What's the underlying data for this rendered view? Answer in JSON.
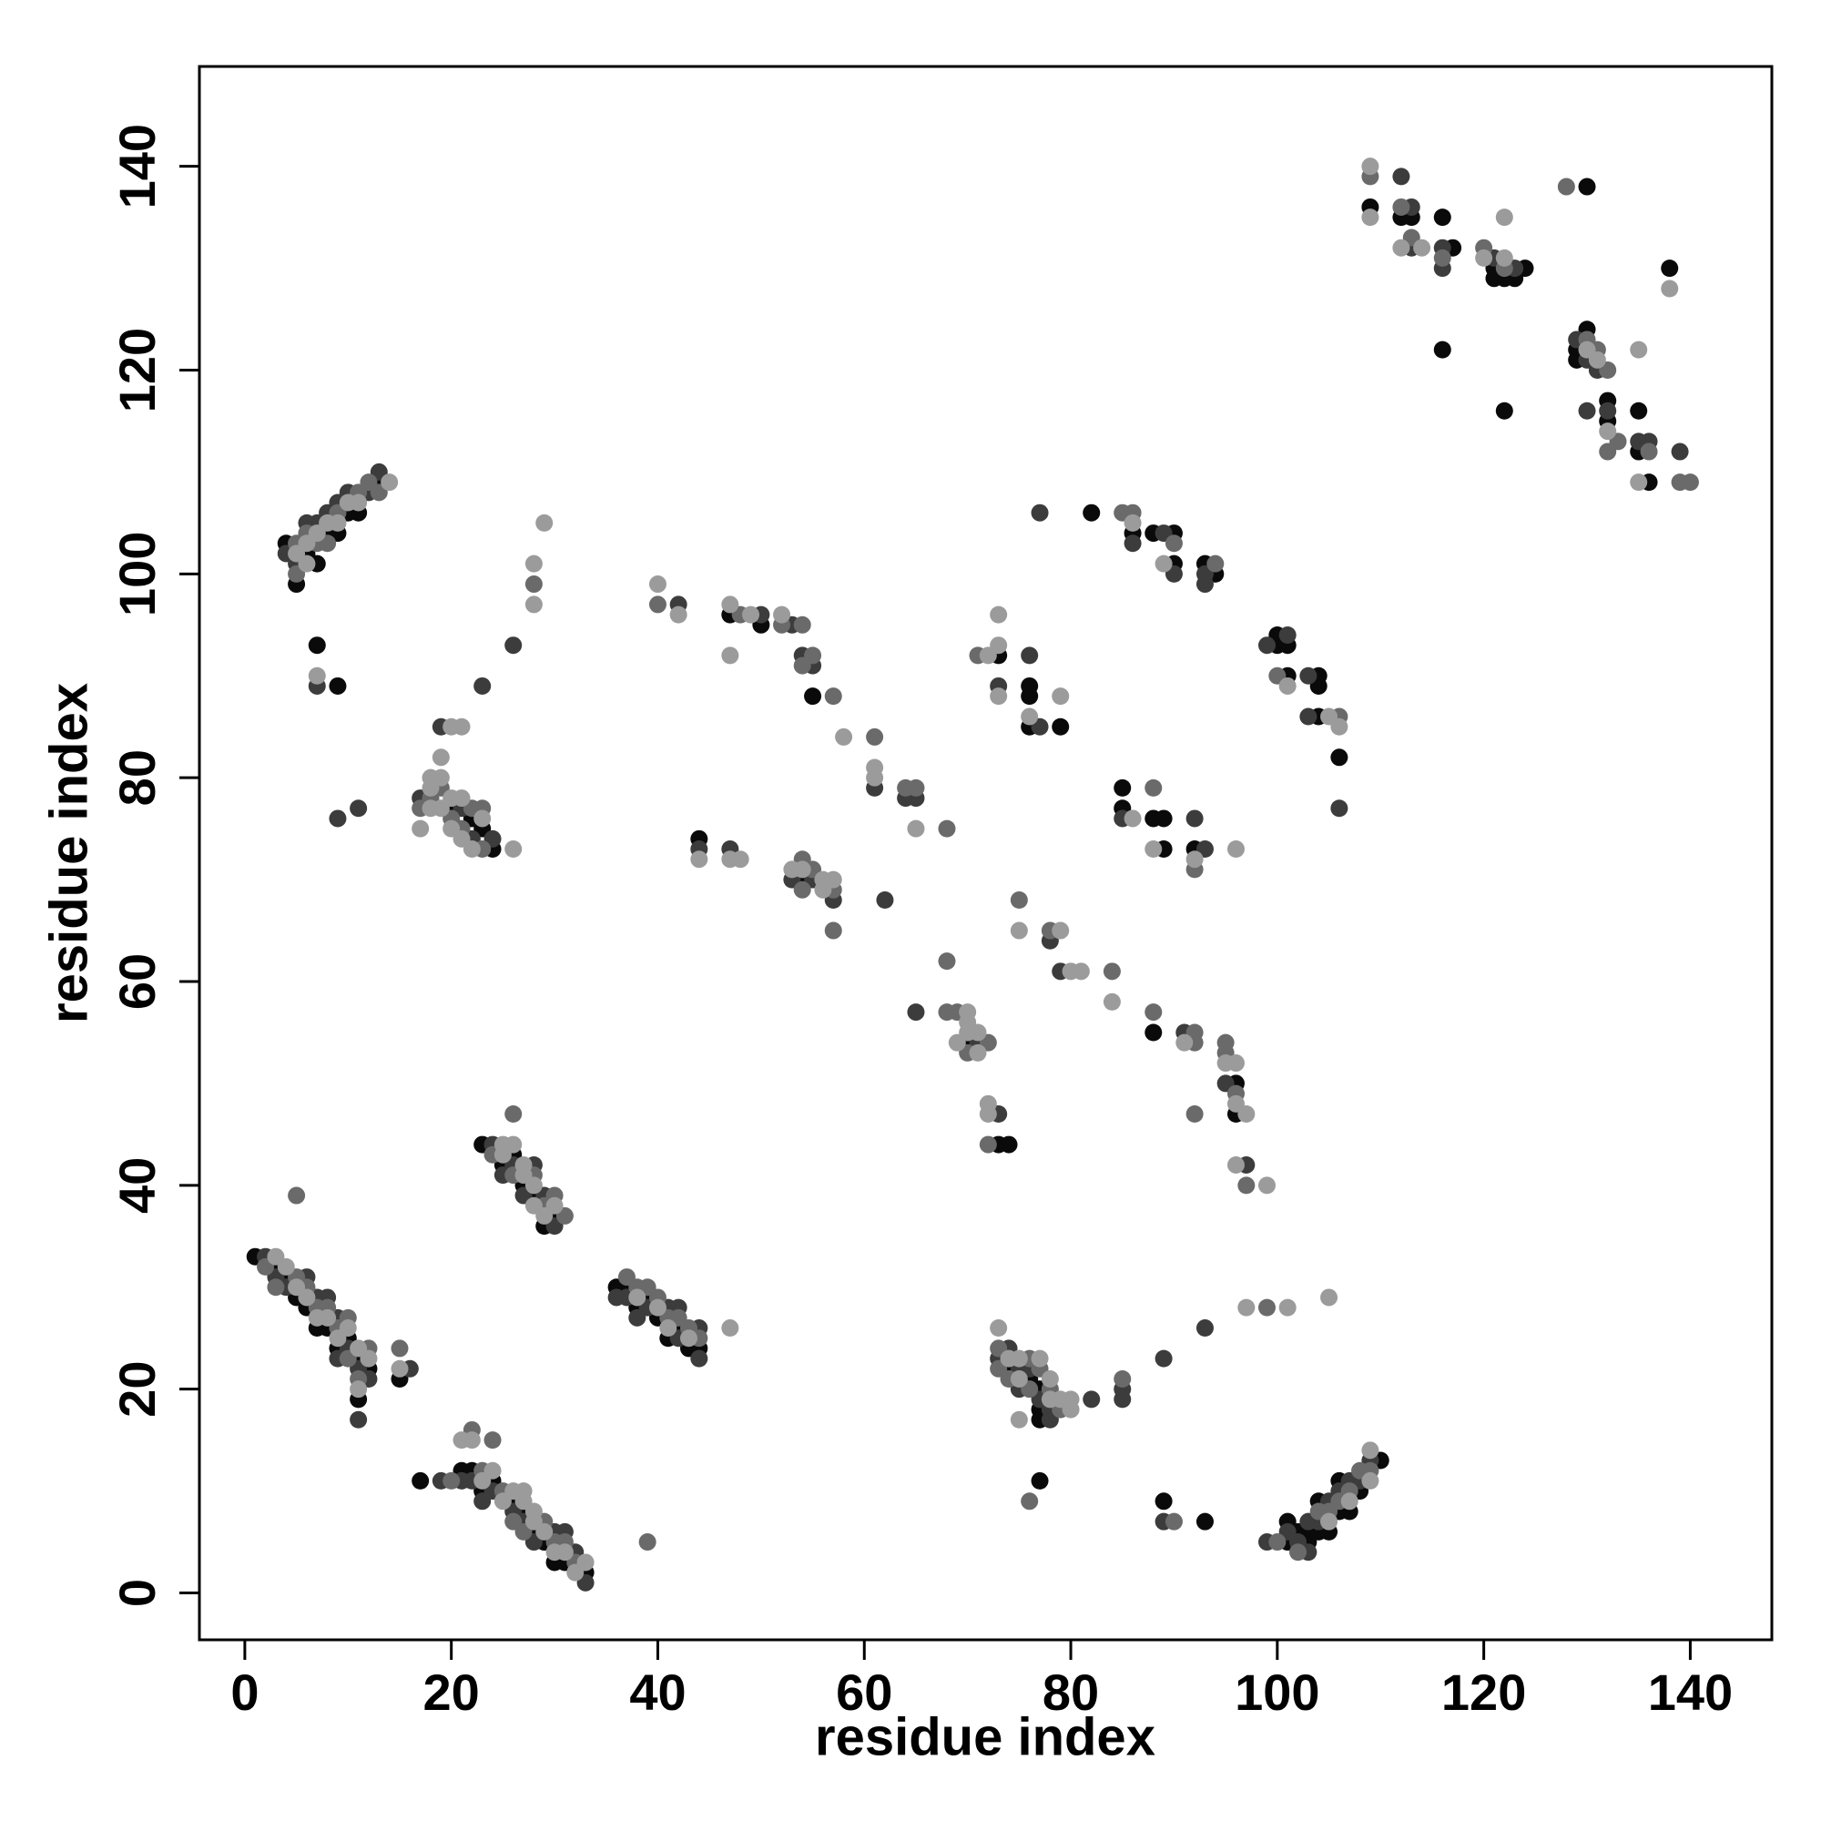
{
  "chart_data": {
    "type": "scatter",
    "xlabel": "residue index",
    "ylabel": "residue index",
    "xlim": [
      -4.4,
      147.9
    ],
    "ylim": [
      -4.6,
      149.8
    ],
    "xticks": [
      0,
      20,
      40,
      60,
      80,
      100,
      120,
      140
    ],
    "yticks": [
      0,
      20,
      40,
      60,
      80,
      100,
      120,
      140
    ],
    "series": [
      {
        "color": "#0a0a0a",
        "x": [
          1,
          3,
          4,
          5,
          6,
          7,
          8,
          9,
          10,
          11,
          11,
          12,
          15,
          17,
          21,
          22,
          23,
          24,
          26,
          27,
          28,
          29,
          30,
          31,
          33,
          23,
          25,
          26,
          27,
          28,
          29,
          30,
          36,
          37,
          38,
          39,
          40,
          41,
          42,
          43,
          44,
          20,
          22,
          23,
          24,
          4,
          5,
          6,
          7,
          8,
          9,
          10,
          11,
          13,
          7,
          9,
          47,
          50,
          55,
          44,
          54,
          70,
          73,
          74,
          88,
          96,
          96,
          73,
          76,
          76,
          76,
          79,
          82,
          86,
          88,
          90,
          90,
          93,
          94,
          100,
          100,
          101,
          101,
          104,
          104,
          104,
          106,
          85,
          85,
          88,
          89,
          89,
          92,
          74,
          76,
          77,
          77,
          77,
          77,
          89,
          93,
          101,
          101,
          102,
          103,
          103,
          104,
          104,
          105,
          106,
          106,
          107,
          108,
          110,
          109,
          112,
          113,
          116,
          116,
          117,
          121,
          121,
          122,
          122,
          123,
          124,
          130,
          129,
          129,
          130,
          132,
          132,
          135,
          135,
          136,
          138
        ],
        "values": [
          33,
          32,
          31,
          29,
          28,
          26,
          26,
          24,
          25,
          23,
          19,
          22,
          21,
          11,
          12,
          12,
          10,
          11,
          9,
          8,
          6,
          5,
          3,
          3,
          2,
          44,
          42,
          43,
          40,
          39,
          36,
          37,
          30,
          30,
          28,
          29,
          27,
          25,
          26,
          24,
          24,
          77,
          76,
          75,
          73,
          103,
          99,
          102,
          101,
          104,
          104,
          106,
          106,
          109,
          93,
          89,
          96,
          95,
          88,
          74,
          70,
          54,
          44,
          44,
          55,
          50,
          47,
          92,
          89,
          88,
          85,
          85,
          106,
          104,
          104,
          104,
          101,
          101,
          100,
          94,
          93,
          93,
          90,
          90,
          89,
          86,
          82,
          79,
          77,
          76,
          76,
          73,
          73,
          22,
          21,
          20,
          18,
          17,
          11,
          9,
          7,
          7,
          5,
          6,
          6,
          5,
          9,
          6,
          6,
          11,
          8,
          8,
          10,
          13,
          136,
          135,
          135,
          135,
          122,
          132,
          130,
          129,
          129,
          116,
          129,
          130,
          138,
          122,
          121,
          124,
          117,
          115,
          116,
          112,
          109,
          130
        ]
      },
      {
        "color": "#3c3c3c",
        "x": [
          2,
          3,
          4,
          6,
          7,
          8,
          9,
          9,
          10,
          11,
          11,
          12,
          16,
          19,
          21,
          22,
          23,
          24,
          26,
          27,
          28,
          30,
          31,
          32,
          33,
          24,
          25,
          26,
          27,
          28,
          29,
          30,
          36,
          37,
          38,
          39,
          41,
          42,
          42,
          44,
          44,
          17,
          19,
          21,
          22,
          24,
          9,
          11,
          23,
          26,
          4,
          5,
          6,
          7,
          8,
          9,
          10,
          12,
          13,
          7,
          42,
          50,
          53,
          54,
          55,
          61,
          64,
          65,
          44,
          47,
          53,
          55,
          57,
          62,
          65,
          71,
          73,
          78,
          79,
          91,
          95,
          97,
          73,
          76,
          77,
          77,
          86,
          89,
          90,
          93,
          93,
          99,
          101,
          103,
          103,
          106,
          85,
          92,
          93,
          73,
          74,
          75,
          75,
          76,
          77,
          78,
          78,
          82,
          85,
          85,
          89,
          93,
          89,
          99,
          101,
          102,
          103,
          103,
          104,
          105,
          106,
          107,
          108,
          109,
          112,
          113,
          113,
          116,
          116,
          121,
          123,
          129,
          130,
          130,
          131,
          132,
          135,
          136,
          139
        ],
        "values": [
          33,
          31,
          30,
          31,
          29,
          29,
          27,
          23,
          24,
          22,
          17,
          21,
          22,
          11,
          11,
          11,
          9,
          10,
          8,
          7,
          5,
          6,
          6,
          4,
          1,
          44,
          41,
          42,
          39,
          42,
          39,
          36,
          29,
          29,
          27,
          28,
          28,
          28,
          25,
          26,
          23,
          78,
          85,
          77,
          74,
          74,
          76,
          77,
          89,
          93,
          102,
          101,
          105,
          105,
          106,
          107,
          108,
          108,
          110,
          89,
          97,
          96,
          95,
          92,
          91,
          79,
          78,
          78,
          73,
          73,
          70,
          70,
          68,
          68,
          57,
          54,
          47,
          64,
          61,
          55,
          50,
          42,
          89,
          92,
          85,
          106,
          103,
          104,
          100,
          100,
          99,
          93,
          94,
          90,
          86,
          77,
          76,
          76,
          73,
          23,
          24,
          22,
          20,
          22,
          19,
          18,
          17,
          19,
          20,
          19,
          23,
          26,
          7,
          5,
          6,
          5,
          7,
          4,
          7,
          9,
          10,
          11,
          11,
          13,
          139,
          136,
          132,
          132,
          130,
          131,
          130,
          123,
          121,
          116,
          120,
          116,
          113,
          113,
          112
        ]
      },
      {
        "color": "#6a6a6a",
        "x": [
          2,
          3,
          5,
          6,
          7,
          8,
          9,
          10,
          10,
          11,
          12,
          15,
          5,
          20,
          22,
          23,
          24,
          25,
          26,
          27,
          29,
          30,
          31,
          32,
          39,
          24,
          26,
          26,
          28,
          29,
          30,
          31,
          37,
          38,
          39,
          40,
          41,
          42,
          43,
          44,
          17,
          18,
          19,
          20,
          21,
          22,
          23,
          23,
          28,
          5,
          5,
          6,
          7,
          8,
          9,
          11,
          12,
          13,
          40,
          48,
          52,
          54,
          54,
          55,
          57,
          61,
          64,
          65,
          68,
          54,
          54,
          55,
          57,
          57,
          68,
          68,
          69,
          70,
          72,
          72,
          75,
          78,
          84,
          88,
          92,
          92,
          92,
          95,
          95,
          96,
          97,
          71,
          85,
          86,
          90,
          94,
          100,
          106,
          88,
          92,
          73,
          73,
          74,
          76,
          76,
          76,
          77,
          78,
          79,
          85,
          99,
          90,
          100,
          102,
          104,
          105,
          106,
          107,
          108,
          109,
          109,
          112,
          113,
          116,
          120,
          122,
          128,
          130,
          131,
          132,
          132,
          133,
          136,
          139,
          140
        ],
        "values": [
          32,
          30,
          31,
          30,
          28,
          28,
          26,
          27,
          23,
          21,
          24,
          24,
          39,
          11,
          16,
          12,
          15,
          10,
          7,
          6,
          7,
          5,
          5,
          3,
          5,
          43,
          47,
          41,
          41,
          38,
          39,
          37,
          31,
          30,
          30,
          29,
          27,
          27,
          26,
          25,
          77,
          78,
          79,
          76,
          75,
          77,
          77,
          73,
          99,
          103,
          100,
          104,
          103,
          103,
          106,
          108,
          109,
          108,
          97,
          96,
          95,
          95,
          91,
          92,
          88,
          84,
          79,
          79,
          75,
          72,
          69,
          71,
          69,
          65,
          62,
          57,
          57,
          53,
          54,
          44,
          68,
          65,
          61,
          57,
          55,
          54,
          47,
          54,
          53,
          49,
          40,
          92,
          106,
          106,
          103,
          101,
          90,
          86,
          79,
          71,
          24,
          22,
          21,
          23,
          20,
          9,
          22,
          20,
          18,
          21,
          28,
          7,
          5,
          4,
          8,
          8,
          9,
          10,
          12,
          12,
          139,
          136,
          133,
          131,
          132,
          130,
          138,
          123,
          122,
          120,
          112,
          113,
          112,
          109,
          109
        ]
      },
      {
        "color": "#9b9b9b",
        "x": [
          3,
          4,
          5,
          6,
          7,
          8,
          9,
          10,
          11,
          11,
          12,
          15,
          21,
          22,
          23,
          24,
          25,
          26,
          27,
          27,
          28,
          28,
          29,
          30,
          31,
          32,
          33,
          25,
          25,
          26,
          27,
          27,
          28,
          28,
          29,
          30,
          38,
          40,
          41,
          43,
          47,
          17,
          18,
          18,
          18,
          19,
          19,
          19,
          20,
          20,
          20,
          21,
          21,
          21,
          22,
          23,
          26,
          28,
          28,
          29,
          5,
          6,
          6,
          7,
          8,
          9,
          10,
          11,
          14,
          7,
          40,
          42,
          47,
          47,
          49,
          52,
          58,
          61,
          61,
          65,
          44,
          47,
          48,
          53,
          54,
          56,
          56,
          57,
          69,
          70,
          70,
          70,
          71,
          71,
          72,
          72,
          75,
          79,
          80,
          81,
          84,
          91,
          95,
          96,
          96,
          97,
          96,
          99,
          72,
          73,
          73,
          73,
          76,
          79,
          86,
          89,
          101,
          105,
          106,
          86,
          88,
          92,
          96,
          73,
          74,
          75,
          75,
          75,
          77,
          78,
          78,
          79,
          80,
          80,
          97,
          101,
          105,
          105,
          107,
          109,
          109,
          109,
          109,
          112,
          114,
          120,
          122,
          122,
          130,
          131,
          132,
          135,
          135,
          138
        ],
        "values": [
          33,
          32,
          30,
          29,
          27,
          27,
          25,
          26,
          24,
          20,
          23,
          22,
          15,
          15,
          11,
          12,
          9,
          10,
          10,
          9,
          8,
          7,
          6,
          4,
          4,
          2,
          3,
          44,
          43,
          44,
          42,
          41,
          40,
          38,
          37,
          38,
          29,
          28,
          26,
          25,
          26,
          75,
          80,
          79,
          77,
          82,
          80,
          77,
          85,
          78,
          75,
          85,
          78,
          74,
          73,
          76,
          73,
          101,
          97,
          105,
          102,
          103,
          101,
          104,
          105,
          105,
          107,
          107,
          109,
          90,
          99,
          96,
          97,
          92,
          96,
          96,
          84,
          81,
          80,
          75,
          72,
          72,
          72,
          71,
          71,
          70,
          69,
          70,
          54,
          57,
          56,
          55,
          55,
          53,
          48,
          47,
          65,
          65,
          61,
          61,
          58,
          54,
          52,
          52,
          48,
          47,
          42,
          40,
          92,
          96,
          93,
          88,
          86,
          88,
          105,
          101,
          89,
          86,
          85,
          76,
          73,
          72,
          73,
          26,
          23,
          23,
          21,
          17,
          23,
          21,
          19,
          19,
          19,
          18,
          28,
          28,
          29,
          7,
          9,
          14,
          11,
          140,
          135,
          132,
          132,
          131,
          135,
          131,
          122,
          121,
          114,
          122,
          109,
          128
        ]
      }
    ]
  }
}
